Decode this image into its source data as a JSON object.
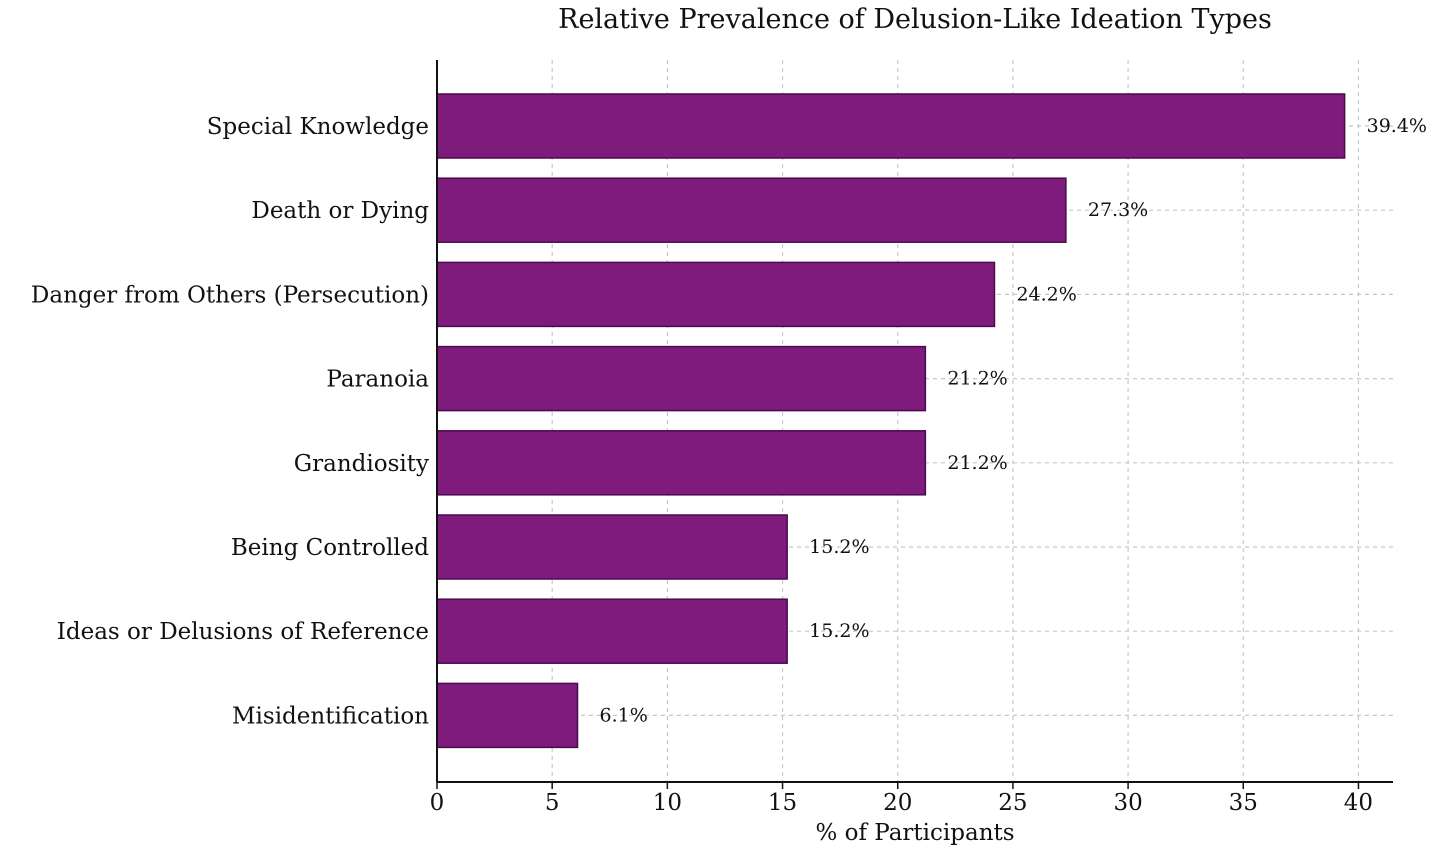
{
  "chart_data": {
    "type": "bar",
    "orientation": "horizontal",
    "title": "Relative Prevalence of Delusion-Like Ideation Types",
    "xlabel": "% of Participants",
    "ylabel": "",
    "xlim": [
      0,
      41.5
    ],
    "xticks": [
      0,
      5,
      10,
      15,
      20,
      25,
      30,
      35,
      40
    ],
    "grid": true,
    "bar_color": "#7e1b7c",
    "categories": [
      "Special Knowledge",
      "Death or Dying",
      "Danger from Others (Persecution)",
      "Paranoia",
      "Grandiosity",
      "Being Controlled",
      "Ideas or Delusions of Reference",
      "Misidentification"
    ],
    "values": [
      39.4,
      27.3,
      24.2,
      21.2,
      21.2,
      15.2,
      15.2,
      6.1
    ],
    "data_labels": [
      "39.4%",
      "27.3%",
      "24.2%",
      "21.2%",
      "21.2%",
      "15.2%",
      "15.2%",
      "6.1%"
    ]
  }
}
